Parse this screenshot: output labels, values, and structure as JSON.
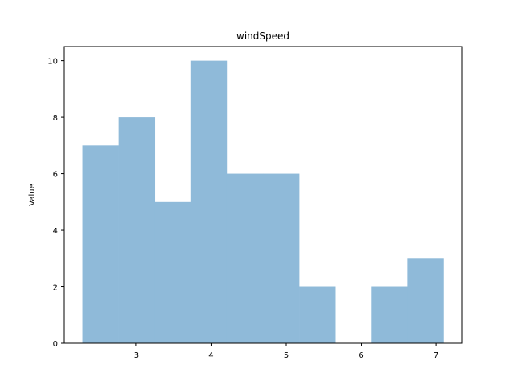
{
  "chart_data": {
    "type": "bar",
    "subtype": "histogram",
    "title": "windSpeed",
    "xlabel": "",
    "ylabel": "Value",
    "bin_edges": [
      2.28,
      2.762,
      3.244,
      3.726,
      4.208,
      4.69,
      5.172,
      5.654,
      6.136,
      6.618,
      7.1
    ],
    "counts": [
      7,
      8,
      5,
      10,
      6,
      6,
      2,
      0,
      2,
      3
    ],
    "xlim": [
      2.039,
      7.341
    ],
    "ylim": [
      0,
      10.5
    ],
    "xticks": [
      3,
      4,
      5,
      6,
      7
    ],
    "yticks": [
      0,
      2,
      4,
      6,
      8,
      10
    ],
    "bar_color": "#8fbad9",
    "grid": false
  }
}
